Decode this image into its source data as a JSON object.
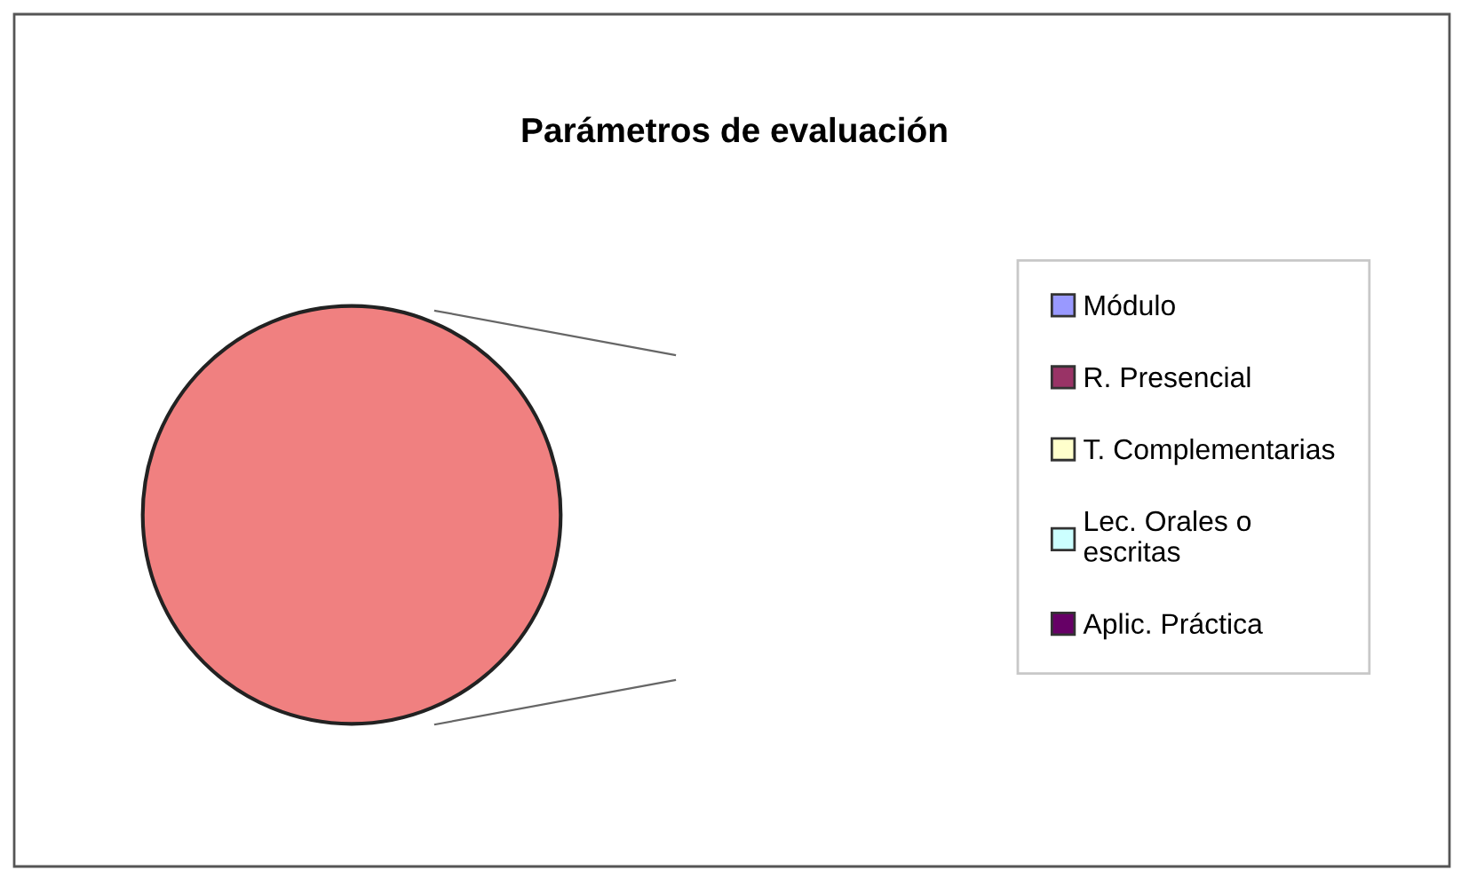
{
  "chart_data": {
    "type": "pie",
    "title": "Parámetros de evaluación",
    "categories": [
      "Módulo",
      "R. Presencial",
      "T. Complementarias",
      "Lec. Orales o\nescritas",
      "Aplic. Práctica",
      null
    ],
    "values": [
      0,
      0,
      0,
      0,
      0,
      100
    ],
    "colors": [
      "#9999ff",
      "#993366",
      "#ffffcc",
      "#ccffff",
      "#660066",
      "#f08080"
    ],
    "legend": "right"
  }
}
